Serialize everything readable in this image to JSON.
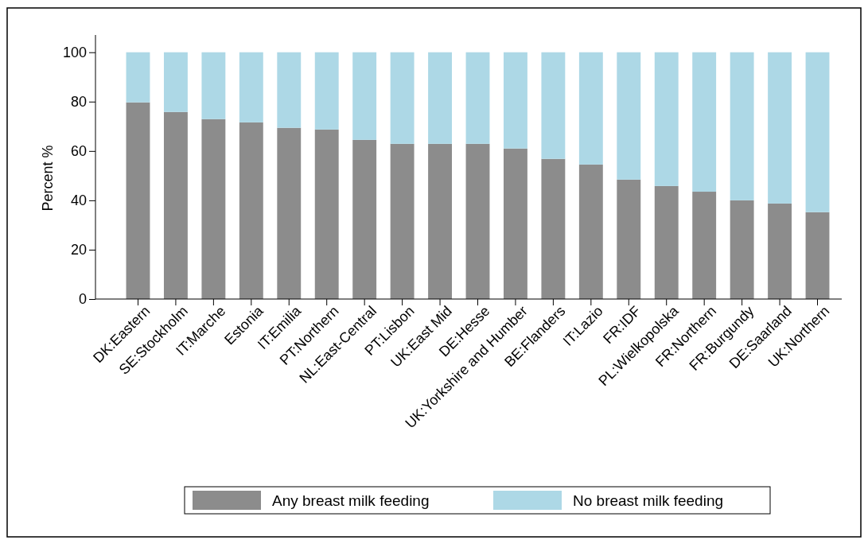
{
  "chart_data": {
    "type": "bar",
    "stacked": true,
    "ylabel": "Percent %",
    "categories": [
      "DK:Eastern",
      "SE:Stockholm",
      "IT:Marche",
      "Estonia",
      "IT:Emilia",
      "PT:Northern",
      "NL:East-Central",
      "PT:Lisbon",
      "UK:East Mid",
      "DE:Hesse",
      "UK:Yorkshire and Humber",
      "BE:Flanders",
      "IT:Lazio",
      "FR:IDF",
      "PL:Wielkopolska",
      "FR:Northern",
      "FR:Burgundy",
      "DE:Saarland",
      "UK:Northern"
    ],
    "series": [
      {
        "name": "Any breast milk feeding",
        "color": "#8c8c8c",
        "values": [
          79.7,
          75.8,
          72.9,
          71.6,
          69.4,
          68.7,
          64.5,
          62.9,
          62.9,
          62.9,
          61.0,
          56.8,
          54.5,
          48.4,
          45.8,
          43.5,
          40.0,
          38.7,
          35.2
        ]
      },
      {
        "name": "No breast milk feeding",
        "color": "#add8e6",
        "values": [
          20.3,
          24.2,
          27.1,
          28.4,
          30.6,
          31.3,
          35.5,
          37.1,
          37.1,
          37.1,
          39.0,
          43.2,
          45.5,
          51.6,
          54.2,
          56.5,
          60.0,
          61.3,
          64.8
        ]
      }
    ],
    "ylim": [
      0,
      107
    ],
    "yticks": [
      0,
      20,
      40,
      60,
      80,
      100
    ],
    "grid": false,
    "legend": "bottom"
  }
}
